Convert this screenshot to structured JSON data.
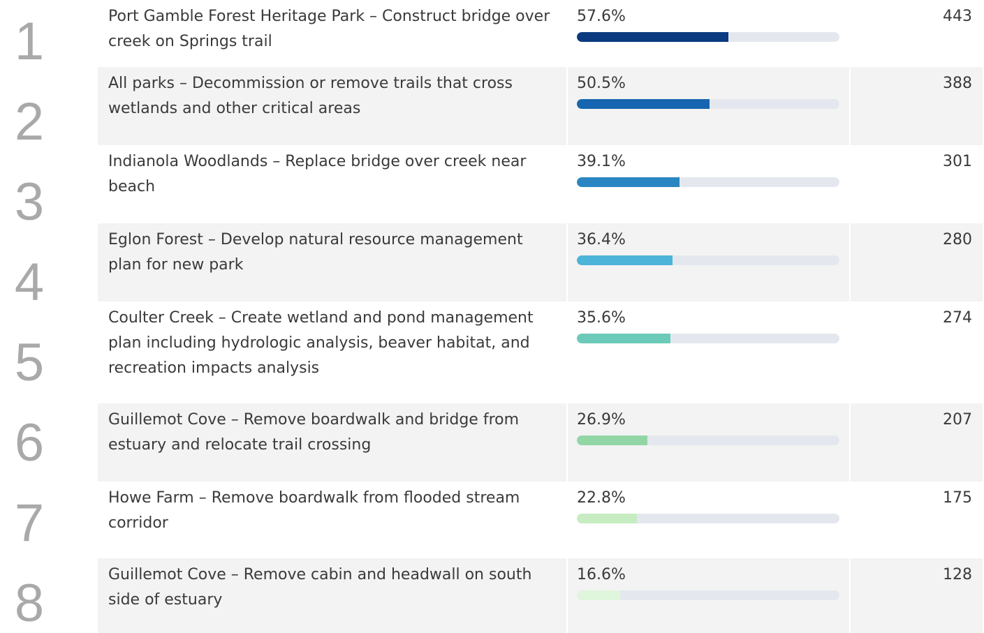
{
  "xlim": [
    0,
    100
  ],
  "rows": [
    {
      "rank": "1",
      "label": "Port Gamble Forest Heritage Park – Construct bridge over creek on Springs trail",
      "percent": 57.6,
      "percent_label": "57.6%",
      "count": 443,
      "color": "#0b3a7e"
    },
    {
      "rank": "2",
      "label": "All parks – Decommission or remove trails that cross wetlands and other critical areas",
      "percent": 50.5,
      "percent_label": "50.5%",
      "count": 388,
      "color": "#1565b0"
    },
    {
      "rank": "3",
      "label": "Indianola Woodlands – Replace bridge over creek near beach",
      "percent": 39.1,
      "percent_label": "39.1%",
      "count": 301,
      "color": "#2a86c2"
    },
    {
      "rank": "4",
      "label": "Eglon Forest – Develop natural resource management plan for new park",
      "percent": 36.4,
      "percent_label": "36.4%",
      "count": 280,
      "color": "#4cb3d9"
    },
    {
      "rank": "5",
      "label": "Coulter Creek – Create wetland and pond management plan including hydrologic analysis, beaver habitat, and recreation impacts analysis",
      "percent": 35.6,
      "percent_label": "35.6%",
      "count": 274,
      "color": "#6ccab9"
    },
    {
      "rank": "6",
      "label": "Guillemot Cove – Remove boardwalk and bridge from estuary and relocate trail crossing",
      "percent": 26.9,
      "percent_label": "26.9%",
      "count": 207,
      "color": "#92d6a6"
    },
    {
      "rank": "7",
      "label": "Howe Farm – Remove boardwalk from flooded stream corridor",
      "percent": 22.8,
      "percent_label": "22.8%",
      "count": 175,
      "color": "#c7ecc1"
    },
    {
      "rank": "8",
      "label": "Guillemot Cove – Remove cabin and headwall on south side of estuary",
      "percent": 16.6,
      "percent_label": "16.6%",
      "count": 128,
      "color": "#dff5dc"
    }
  ]
}
